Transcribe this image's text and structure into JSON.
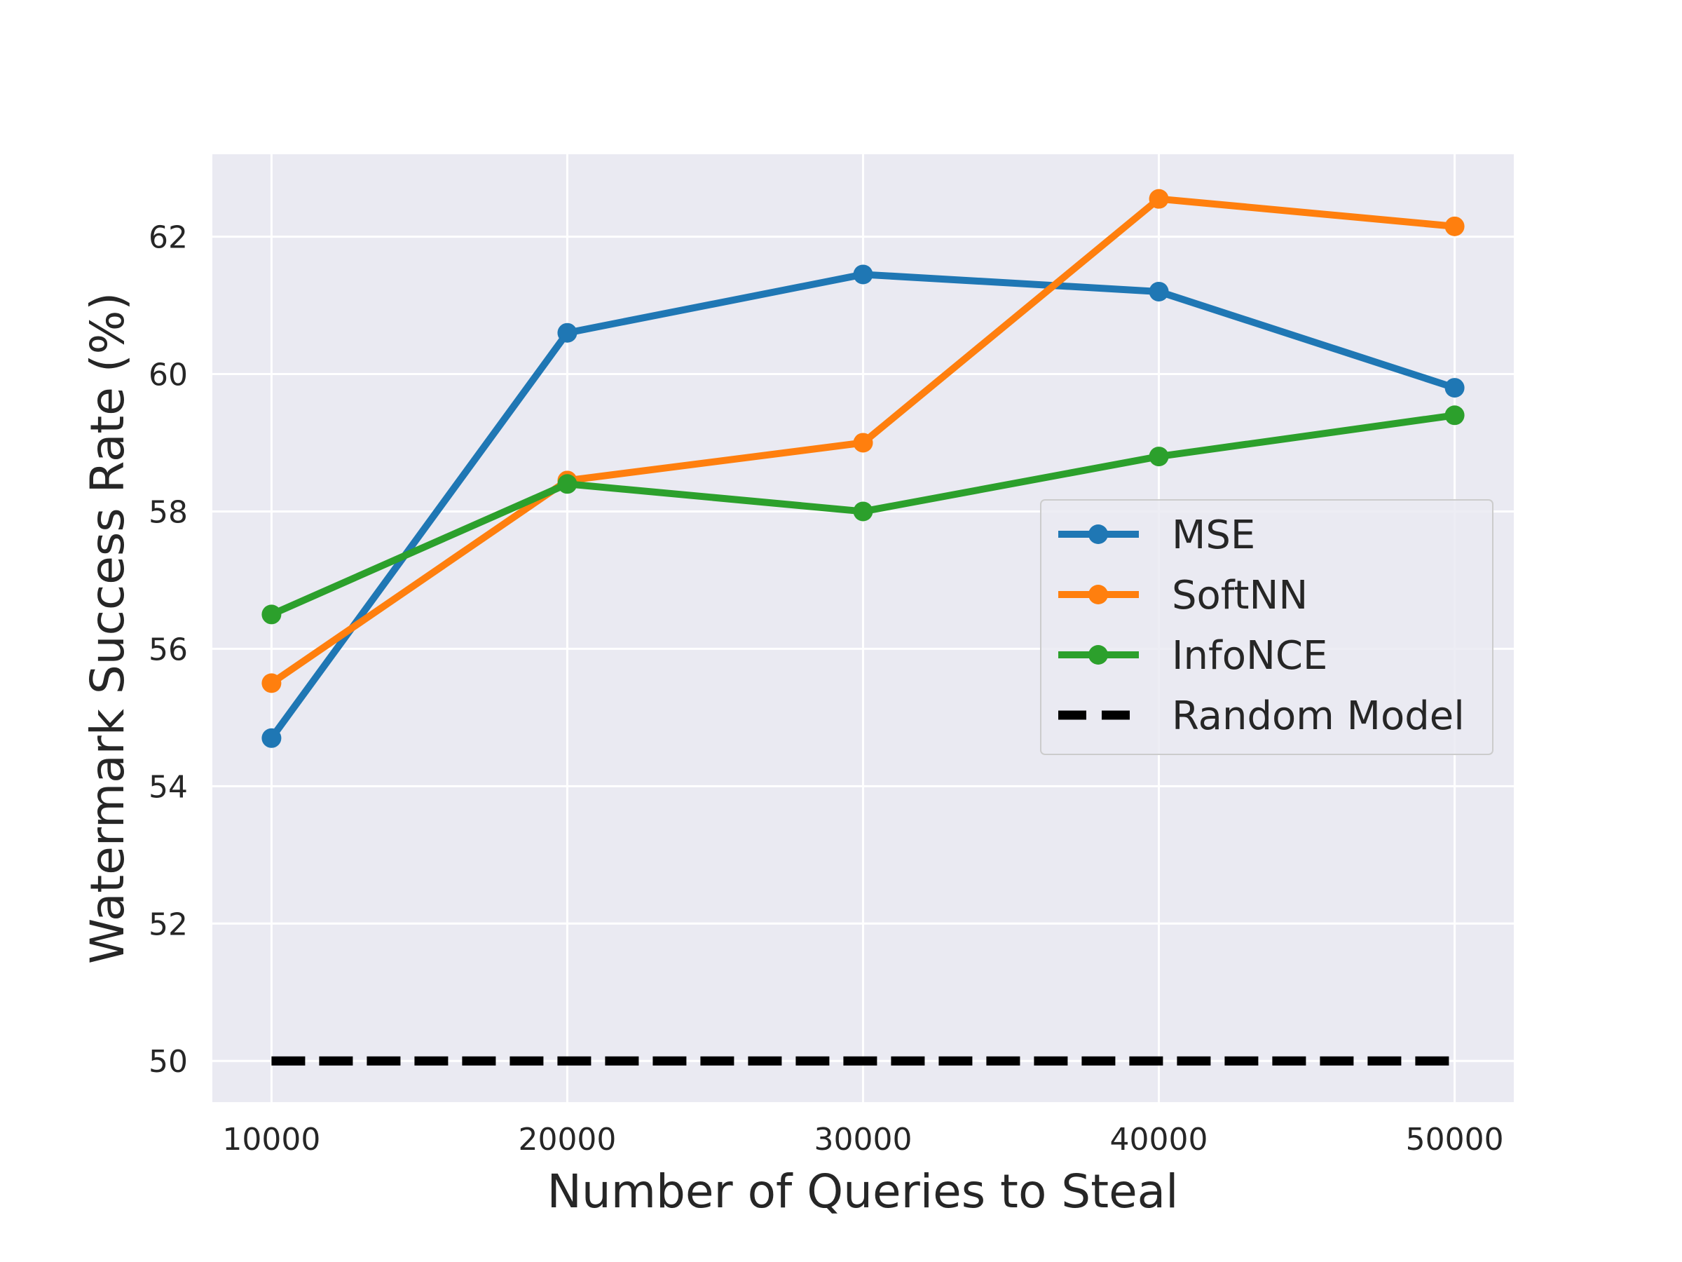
{
  "chart_data": {
    "type": "line",
    "title": "",
    "xlabel": "Number of Queries to Steal",
    "ylabel": "Watermark Success Rate (%)",
    "x": [
      10000,
      20000,
      30000,
      40000,
      50000
    ],
    "xticks": [
      10000,
      20000,
      30000,
      40000,
      50000
    ],
    "xtick_labels": [
      "10000",
      "20000",
      "30000",
      "40000",
      "50000"
    ],
    "xlim": [
      8000,
      52000
    ],
    "yticks": [
      50,
      52,
      54,
      56,
      58,
      60,
      62
    ],
    "ytick_labels": [
      "50",
      "52",
      "54",
      "56",
      "58",
      "60",
      "62"
    ],
    "ylim": [
      49.4,
      63.2
    ],
    "grid": true,
    "legend_position": "center-right",
    "series": [
      {
        "name": "MSE",
        "color": "#1f77b4",
        "style": "solid-marker",
        "values": [
          54.7,
          60.6,
          61.45,
          61.2,
          59.8
        ]
      },
      {
        "name": "SoftNN",
        "color": "#ff7f0e",
        "style": "solid-marker",
        "values": [
          55.5,
          58.45,
          59.0,
          62.55,
          62.15
        ]
      },
      {
        "name": "InfoNCE",
        "color": "#2ca02c",
        "style": "solid-marker",
        "values": [
          56.5,
          58.4,
          58.0,
          58.8,
          59.4
        ]
      },
      {
        "name": "Random Model",
        "color": "#000000",
        "style": "dashed",
        "values": [
          50,
          50,
          50,
          50,
          50
        ]
      }
    ]
  }
}
